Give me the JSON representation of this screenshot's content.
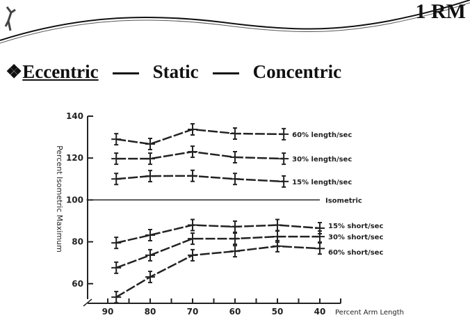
{
  "slide": {
    "corner_title": "1 RM",
    "bullet": "❖",
    "heading": [
      "Eccentric",
      "Static",
      "Concentric"
    ]
  },
  "chart_data": {
    "type": "line",
    "xlabel": "Percent Arm Length",
    "ylabel": "Percent Isometric Maximum",
    "xlim": [
      95,
      35
    ],
    "ylim": [
      52,
      140
    ],
    "xticks": [
      90,
      80,
      70,
      60,
      50,
      40
    ],
    "yticks": [
      140,
      120,
      100,
      80,
      60
    ],
    "grid": false,
    "series": [
      {
        "name": "60% length/sec",
        "x": [
          88,
          80,
          70,
          60,
          48.5
        ],
        "y": [
          129,
          126.7,
          133.7,
          131.7,
          131.4
        ]
      },
      {
        "name": "30% length/sec",
        "x": [
          88,
          80,
          70,
          60,
          48.5
        ],
        "y": [
          119.7,
          119.7,
          123,
          120.4,
          119.7
        ]
      },
      {
        "name": "15% length/sec",
        "x": [
          88,
          80,
          70,
          60,
          48.5
        ],
        "y": [
          110,
          111.4,
          111.5,
          110,
          108.8
        ]
      },
      {
        "name": "Isometric",
        "x": [
          95,
          40
        ],
        "y": [
          100,
          100
        ]
      },
      {
        "name": "15% short/sec",
        "x": [
          88,
          80,
          70,
          60,
          50,
          40
        ],
        "y": [
          79.5,
          83.2,
          88,
          87.2,
          88,
          86.5
        ]
      },
      {
        "name": "30% short/sec",
        "x": [
          88,
          80,
          70,
          60,
          50,
          40
        ],
        "y": [
          67.6,
          73.6,
          81.5,
          81.5,
          82.5,
          82.5
        ]
      },
      {
        "name": "60% short/sec",
        "x": [
          88,
          80,
          70,
          60,
          50,
          40
        ],
        "y": [
          53.6,
          63.2,
          73.6,
          75.5,
          77.9,
          76.8
        ]
      }
    ]
  }
}
